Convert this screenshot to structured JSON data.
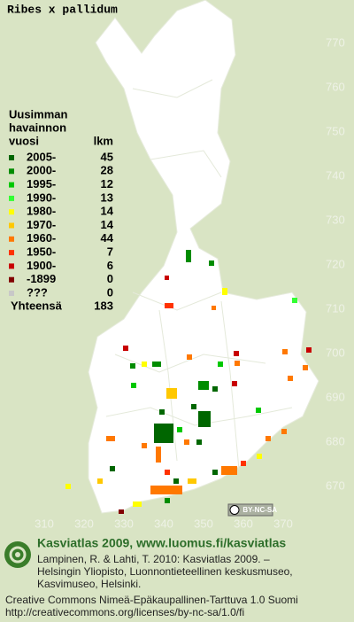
{
  "title": "Ribes x pallidum",
  "legend": {
    "heading": [
      "Uusimman",
      "havainnon"
    ],
    "col_headers": [
      "vuosi",
      "lkm"
    ],
    "rows": [
      {
        "label": "2005-",
        "count": 45,
        "color": "#006600"
      },
      {
        "label": "2000-",
        "count": 28,
        "color": "#008c00"
      },
      {
        "label": "1995-",
        "count": 12,
        "color": "#00c800"
      },
      {
        "label": "1990-",
        "count": 13,
        "color": "#33ff33"
      },
      {
        "label": "1980-",
        "count": 14,
        "color": "#ffff00"
      },
      {
        "label": "1970-",
        "count": 14,
        "color": "#ffc800"
      },
      {
        "label": "1960-",
        "count": 44,
        "color": "#ff7800"
      },
      {
        "label": "1950-",
        "count": 7,
        "color": "#ff3200"
      },
      {
        "label": "1900-",
        "count": 6,
        "color": "#c80000"
      },
      {
        "label": "-1899",
        "count": 0,
        "color": "#820000"
      },
      {
        "label": "???",
        "count": 0,
        "color": "#c8c8c8"
      }
    ],
    "total_label": "Yhteensä",
    "total": 183
  },
  "x_ticks": [
    310,
    320,
    330,
    340,
    350,
    360,
    370
  ],
  "y_ticks": [
    770,
    760,
    750,
    740,
    730,
    720,
    710,
    700,
    690,
    680,
    670
  ],
  "license_badge": "BY-NC-SA",
  "footer": {
    "headline": "Kasviatlas 2009, www.luomus.fi/kasviatlas",
    "citation": [
      "Lampinen, R. & Lahti, T. 2010: Kasviatlas 2009. –",
      "Helsingin Yliopisto, Luonnontieteellinen keskusmuseo,",
      "Kasvimuseo, Helsinki."
    ],
    "license": [
      "Creative Commons Nimeä-Epäkaupallinen-Tarttuva 1.0 Suomi",
      "http://creativecommons.org/licenses/by-nc-sa/1.0/fi"
    ]
  }
}
